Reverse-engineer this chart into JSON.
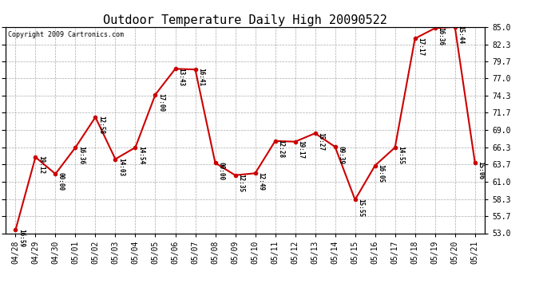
{
  "title": "Outdoor Temperature Daily High 20090522",
  "copyright": "Copyright 2009 Cartronics.com",
  "x_labels": [
    "04/28",
    "04/29",
    "04/30",
    "05/01",
    "05/02",
    "05/03",
    "05/04",
    "05/05",
    "05/06",
    "05/07",
    "05/08",
    "05/09",
    "05/10",
    "05/11",
    "05/12",
    "05/13",
    "05/14",
    "05/15",
    "05/16",
    "05/17",
    "05/18",
    "05/19",
    "05/20",
    "05/21"
  ],
  "y_values": [
    53.5,
    64.8,
    62.2,
    66.3,
    71.0,
    64.5,
    66.3,
    74.5,
    78.5,
    78.4,
    63.9,
    62.0,
    62.3,
    67.3,
    67.2,
    68.5,
    66.4,
    58.2,
    63.5,
    66.3,
    83.2,
    84.8,
    85.0,
    64.0
  ],
  "point_labels": [
    "16:59",
    "19:12",
    "00:00",
    "16:36",
    "12:58",
    "14:03",
    "14:54",
    "17:00",
    "13:43",
    "16:41",
    "00:00",
    "12:35",
    "12:49",
    "12:28",
    "19:17",
    "15:27",
    "09:39",
    "15:55",
    "16:05",
    "14:55",
    "17:17",
    "16:36",
    "15:44",
    "15:06"
  ],
  "y_ticks": [
    53.0,
    55.7,
    58.3,
    61.0,
    63.7,
    66.3,
    69.0,
    71.7,
    74.3,
    77.0,
    79.7,
    82.3,
    85.0
  ],
  "y_min": 53.0,
  "y_max": 85.0,
  "line_color": "#cc0000",
  "marker_color": "#cc0000",
  "background_color": "#ffffff",
  "grid_color": "#aaaaaa",
  "title_fontsize": 11,
  "copyright_fontsize": 6,
  "label_fontsize": 5.5,
  "tick_fontsize": 7
}
